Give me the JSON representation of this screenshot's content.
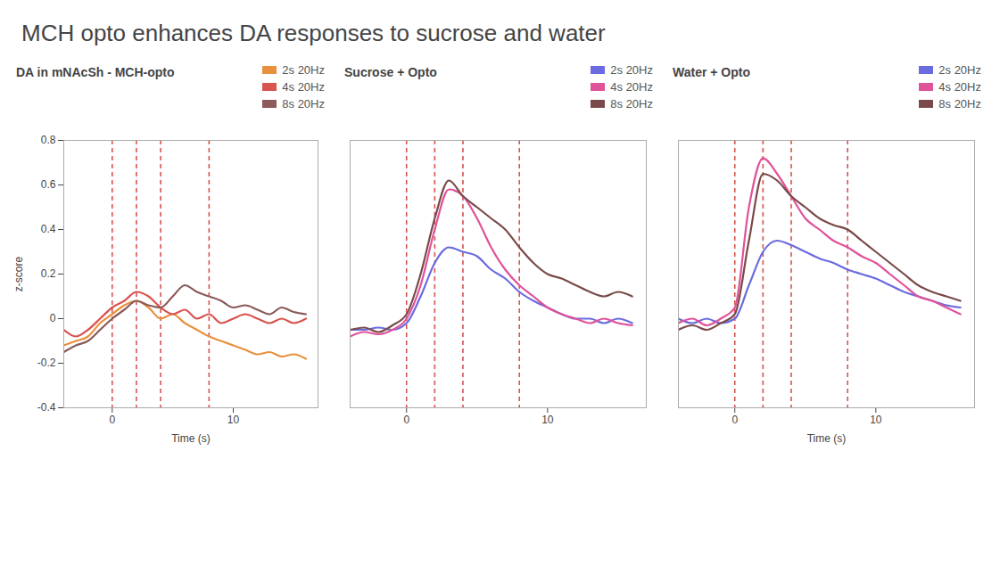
{
  "title": "MCH opto enhances DA responses to sucrose and water",
  "chart_data": [
    {
      "type": "line",
      "title": "DA in mNAcSh - MCH-opto",
      "x_label": "Time (s)",
      "y_label": "z-score",
      "x": [
        -4,
        -3,
        -2,
        -1,
        0,
        1,
        2,
        3,
        4,
        5,
        6,
        7,
        8,
        9,
        10,
        11,
        12,
        13,
        14,
        15,
        16
      ],
      "xlim": [
        -4,
        17
      ],
      "xticks": [
        0,
        10
      ],
      "ylim": [
        -0.4,
        0.8
      ],
      "yticks": [
        -0.4,
        -0.2,
        0,
        0.2,
        0.4,
        0.6,
        0.8
      ],
      "event_times": [
        0,
        2,
        4,
        8
      ],
      "legend": "top-right",
      "series": [
        {
          "name": "2s 20Hz",
          "color": "#e8903c",
          "values": [
            -0.12,
            -0.1,
            -0.08,
            -0.02,
            0.02,
            0.06,
            0.08,
            0.05,
            0.0,
            0.02,
            -0.02,
            -0.05,
            -0.08,
            -0.1,
            -0.12,
            -0.14,
            -0.16,
            -0.15,
            -0.17,
            -0.16,
            -0.18
          ]
        },
        {
          "name": "4s 20Hz",
          "color": "#d9534f",
          "values": [
            -0.05,
            -0.08,
            -0.05,
            0.0,
            0.05,
            0.08,
            0.12,
            0.1,
            0.05,
            0.02,
            0.04,
            0.0,
            0.02,
            -0.02,
            0.0,
            0.02,
            0.0,
            -0.02,
            0.0,
            -0.02,
            0.0
          ]
        },
        {
          "name": "8s 20Hz",
          "color": "#8b5a5a",
          "values": [
            -0.15,
            -0.12,
            -0.1,
            -0.05,
            0.0,
            0.04,
            0.08,
            0.06,
            0.05,
            0.1,
            0.15,
            0.12,
            0.1,
            0.08,
            0.05,
            0.06,
            0.04,
            0.02,
            0.05,
            0.03,
            0.02
          ]
        }
      ]
    },
    {
      "type": "line",
      "title": "Sucrose + Opto",
      "x": [
        -4,
        -3,
        -2,
        -1,
        0,
        1,
        2,
        3,
        4,
        5,
        6,
        7,
        8,
        9,
        10,
        11,
        12,
        13,
        14,
        15,
        16
      ],
      "xlim": [
        -4,
        17
      ],
      "xticks": [
        0,
        10
      ],
      "ylim": [
        -0.4,
        0.8
      ],
      "tick_labels": "x",
      "event_times": [
        0,
        2,
        4,
        8
      ],
      "legend": "top-right",
      "series": [
        {
          "name": "2s 20Hz",
          "color": "#6b6be0",
          "values": [
            -0.05,
            -0.05,
            -0.04,
            -0.05,
            -0.02,
            0.1,
            0.25,
            0.32,
            0.3,
            0.28,
            0.22,
            0.18,
            0.12,
            0.08,
            0.05,
            0.02,
            0.0,
            0.0,
            -0.02,
            0.0,
            -0.02
          ]
        },
        {
          "name": "4s 20Hz",
          "color": "#e0529a",
          "values": [
            -0.08,
            -0.06,
            -0.07,
            -0.05,
            0.0,
            0.15,
            0.4,
            0.58,
            0.55,
            0.45,
            0.32,
            0.22,
            0.15,
            0.1,
            0.05,
            0.02,
            0.0,
            -0.02,
            0.0,
            -0.02,
            -0.03
          ]
        },
        {
          "name": "8s 20Hz",
          "color": "#7a4a4a",
          "values": [
            -0.05,
            -0.04,
            -0.06,
            -0.03,
            0.02,
            0.2,
            0.45,
            0.62,
            0.55,
            0.5,
            0.45,
            0.4,
            0.32,
            0.25,
            0.2,
            0.18,
            0.15,
            0.12,
            0.1,
            0.12,
            0.1
          ]
        }
      ]
    },
    {
      "type": "line",
      "title": "Water + Opto",
      "x_label": "Time (s)",
      "x": [
        -4,
        -3,
        -2,
        -1,
        0,
        1,
        2,
        3,
        4,
        5,
        6,
        7,
        8,
        9,
        10,
        11,
        12,
        13,
        14,
        15,
        16
      ],
      "xlim": [
        -4,
        17
      ],
      "xticks": [
        0,
        10
      ],
      "ylim": [
        -0.4,
        0.8
      ],
      "tick_labels": "x",
      "event_times": [
        0,
        2,
        4,
        8
      ],
      "legend": "top-right",
      "series": [
        {
          "name": "2s 20Hz",
          "color": "#6b6be0",
          "values": [
            0.0,
            -0.02,
            0.0,
            -0.02,
            0.0,
            0.15,
            0.3,
            0.35,
            0.33,
            0.3,
            0.27,
            0.25,
            0.22,
            0.2,
            0.18,
            0.15,
            0.12,
            0.1,
            0.08,
            0.06,
            0.05
          ]
        },
        {
          "name": "4s 20Hz",
          "color": "#e0529a",
          "values": [
            -0.02,
            0.0,
            -0.03,
            0.0,
            0.05,
            0.5,
            0.72,
            0.65,
            0.55,
            0.45,
            0.4,
            0.35,
            0.32,
            0.28,
            0.25,
            0.2,
            0.15,
            0.1,
            0.08,
            0.05,
            0.02
          ]
        },
        {
          "name": "8s 20Hz",
          "color": "#7a4a4a",
          "values": [
            -0.05,
            -0.03,
            -0.05,
            -0.02,
            0.02,
            0.35,
            0.65,
            0.62,
            0.55,
            0.5,
            0.45,
            0.42,
            0.4,
            0.35,
            0.3,
            0.25,
            0.2,
            0.15,
            0.12,
            0.1,
            0.08
          ]
        }
      ]
    }
  ]
}
